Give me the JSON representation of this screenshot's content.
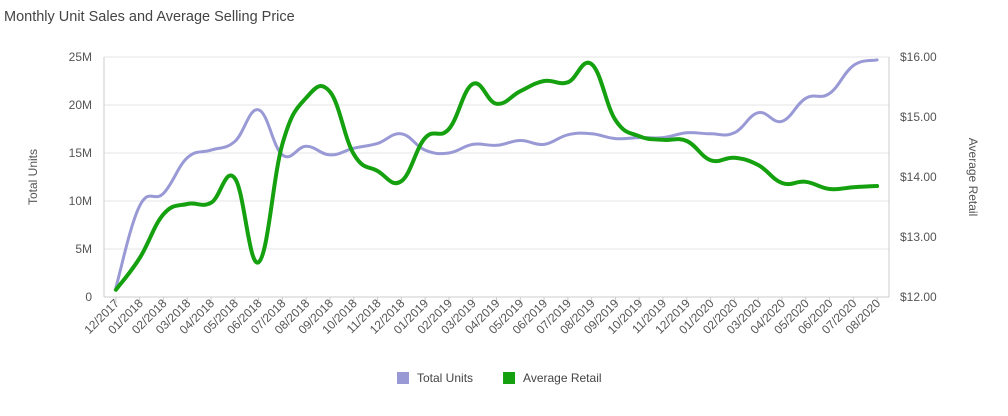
{
  "chart_data": {
    "type": "line",
    "title": "Monthly Unit Sales and Average Selling Price",
    "categories": [
      "12/2017",
      "01/2018",
      "02/2018",
      "03/2018",
      "04/2018",
      "05/2018",
      "06/2018",
      "07/2018",
      "08/2018",
      "09/2018",
      "10/2018",
      "11/2018",
      "12/2018",
      "01/2019",
      "02/2019",
      "03/2019",
      "04/2019",
      "05/2019",
      "06/2019",
      "07/2019",
      "08/2019",
      "09/2019",
      "10/2019",
      "11/2019",
      "12/2019",
      "01/2020",
      "02/2020",
      "03/2020",
      "04/2020",
      "05/2020",
      "06/2020",
      "07/2020",
      "08/2020"
    ],
    "series": [
      {
        "name": "Total Units",
        "axis": "left",
        "color": "#9999d6",
        "values": [
          1000000,
          9500000,
          10800000,
          14500000,
          15300000,
          16200000,
          19500000,
          14800000,
          15700000,
          14800000,
          15500000,
          16000000,
          17000000,
          15300000,
          15000000,
          15900000,
          15800000,
          16300000,
          15900000,
          16900000,
          17000000,
          16500000,
          16600000,
          16600000,
          17100000,
          17000000,
          17100000,
          19200000,
          18300000,
          20700000,
          21200000,
          24100000,
          24700000
        ]
      },
      {
        "name": "Average Retail",
        "axis": "right",
        "color": "#15a10f",
        "values": [
          12.12,
          12.65,
          13.38,
          13.55,
          13.57,
          13.98,
          12.58,
          14.55,
          15.32,
          15.42,
          14.38,
          14.1,
          13.93,
          14.65,
          14.8,
          15.55,
          15.22,
          15.43,
          15.6,
          15.58,
          15.88,
          14.95,
          14.68,
          14.62,
          14.6,
          14.28,
          14.32,
          14.2,
          13.9,
          13.92,
          13.8,
          13.83,
          13.85
        ]
      }
    ],
    "ylabel": "Total Units",
    "ylabel_right": "Average Retail",
    "ylim": [
      0,
      25000000
    ],
    "ylim_right": [
      12,
      16
    ],
    "yticks": [
      0,
      5000000,
      10000000,
      15000000,
      20000000,
      25000000
    ],
    "ytick_labels": [
      "0",
      "5M",
      "10M",
      "15M",
      "20M",
      "25M"
    ],
    "yticks_right": [
      12,
      13,
      14,
      15,
      16
    ],
    "ytick_labels_right": [
      "$12.00",
      "$13.00",
      "$14.00",
      "$15.00",
      "$16.00"
    ],
    "legend": [
      "Total Units",
      "Average Retail"
    ],
    "legend_position": "bottom-center",
    "grid": true
  }
}
